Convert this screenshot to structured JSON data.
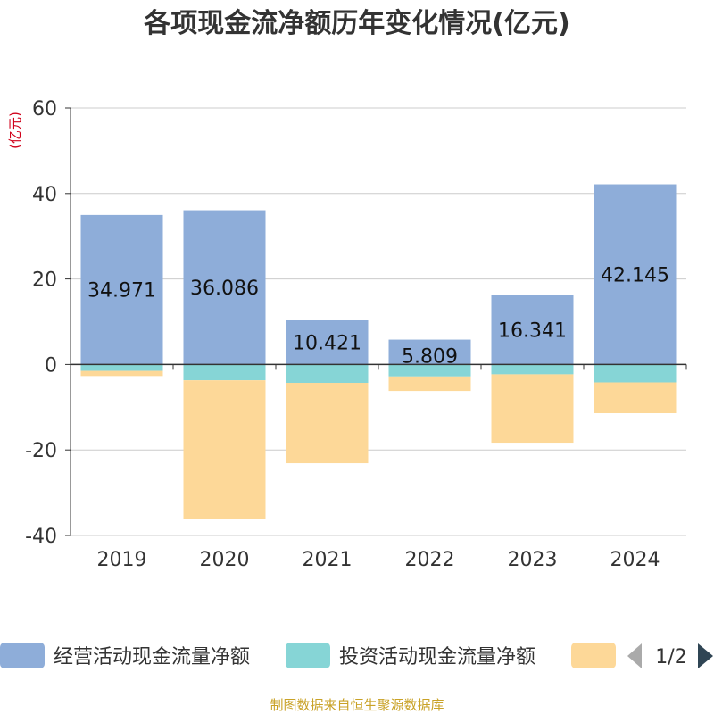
{
  "chart_data": {
    "type": "bar",
    "stacked": true,
    "title": "各项现金流净额历年变化情况(亿元)",
    "ylabel": "(亿元)",
    "ylim": [
      -40,
      60
    ],
    "yticks": [
      60,
      40,
      20,
      0,
      -20,
      -40
    ],
    "ytick_labels": [
      "60",
      "40",
      "20",
      "0",
      "-20",
      "-40"
    ],
    "categories": [
      "2019",
      "2020",
      "2021",
      "2022",
      "2023",
      "2024"
    ],
    "series": [
      {
        "name": "经营活动现金流量净额",
        "color": "#8eadd9",
        "values": [
          34.971,
          36.086,
          10.421,
          5.809,
          16.341,
          42.145
        ],
        "labels": [
          "34.971",
          "36.086",
          "10.421",
          "5.809",
          "16.341",
          "42.145"
        ]
      },
      {
        "name": "投资活动现金流量净额",
        "color": "#86d5d6",
        "values": [
          -1.5,
          -3.7,
          -4.3,
          -2.8,
          -2.3,
          -4.2
        ]
      },
      {
        "name": "",
        "color": "#fdd898",
        "values": [
          -1.2,
          -32.5,
          -18.8,
          -3.4,
          -16.0,
          -7.2
        ]
      }
    ],
    "legend": {
      "position": "bottom",
      "page": "1/2"
    },
    "source": "制图数据来自恒生聚源数据库"
  }
}
